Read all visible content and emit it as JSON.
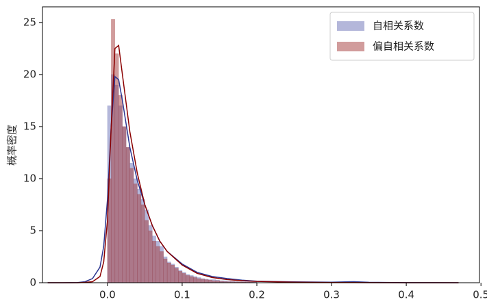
{
  "chart_data": {
    "type": "histogram",
    "y_label": "概率密度",
    "xlim": [
      -0.087,
      0.498
    ],
    "ylim": [
      0,
      26.5
    ],
    "xticks": [
      {
        "value": 0,
        "label": "0.0"
      },
      0.1,
      0.2,
      0.3,
      0.4,
      0.5
    ],
    "yticks": [
      0,
      5,
      10,
      15,
      20,
      25
    ],
    "legend": "upper right",
    "bins": [
      0,
      0.005,
      0.01,
      0.015,
      0.02,
      0.025,
      0.03,
      0.035,
      0.04,
      0.045,
      0.05,
      0.055,
      0.06,
      0.065,
      0.07,
      0.075,
      0.08,
      0.085,
      0.09,
      0.095,
      0.1,
      0.105,
      0.11,
      0.115,
      0.12,
      0.125,
      0.13,
      0.135,
      0.14,
      0.145,
      0.15,
      0.155,
      0.16,
      0.165,
      0.17,
      0.175,
      0.18,
      0.185,
      0.19,
      0.195,
      0.2
    ],
    "kde_x": [
      -0.08,
      -0.06,
      -0.04,
      -0.03,
      -0.02,
      -0.01,
      -0.005,
      0,
      0.005,
      0.01,
      0.015,
      0.02,
      0.03,
      0.04,
      0.05,
      0.06,
      0.07,
      0.08,
      0.1,
      0.12,
      0.14,
      0.16,
      0.18,
      0.2,
      0.25,
      0.3,
      0.33,
      0.35,
      0.4,
      0.47
    ],
    "series": [
      {
        "name": "自相关系数",
        "color": "#6a6fb5",
        "line_color": "#2b3590",
        "values": [
          17,
          20,
          19,
          17,
          15,
          13,
          11.5,
          10,
          9,
          8,
          7,
          5.5,
          4.5,
          4,
          3.5,
          2.5,
          2,
          1.8,
          1.5,
          1.2,
          1,
          0.8,
          0.7,
          0.6,
          0.5,
          0.4,
          0.35,
          0.3,
          0.3,
          0.25,
          0.2,
          0.2,
          0.15,
          0.15,
          0.12,
          0.1,
          0.1,
          0.1,
          0.08,
          0.08
        ],
        "kde_values": [
          0,
          0,
          0.02,
          0.1,
          0.4,
          1.5,
          3.5,
          8,
          15,
          19.8,
          19.5,
          17.5,
          13,
          9.8,
          7.5,
          5.5,
          4,
          3,
          1.8,
          1,
          0.6,
          0.4,
          0.25,
          0.15,
          0.08,
          0.05,
          0.1,
          0.04,
          0.01,
          0
        ]
      },
      {
        "name": "偏自相关系数",
        "color": "#a33a3a",
        "line_color": "#8b0000",
        "values": [
          10,
          25.3,
          22,
          18,
          15,
          13,
          11,
          9.5,
          8.5,
          7.5,
          6,
          5,
          4,
          3.5,
          3,
          2.3,
          1.9,
          1.7,
          1.4,
          1.1,
          0.9,
          0.7,
          0.6,
          0.5,
          0.4,
          0.35,
          0.3,
          0.25,
          0.2,
          0.2,
          0.15,
          0.12,
          0.1,
          0.1,
          0.08,
          0.08,
          0.06,
          0.05,
          0.05,
          0.04
        ],
        "kde_values": [
          0,
          0,
          0,
          0.03,
          0.1,
          0.6,
          2,
          6,
          15,
          22.5,
          22.8,
          20,
          14.5,
          10.5,
          7.5,
          5.5,
          4,
          3,
          1.7,
          0.9,
          0.5,
          0.3,
          0.2,
          0.12,
          0.05,
          0.02,
          0.02,
          0.01,
          0,
          0
        ]
      }
    ]
  }
}
